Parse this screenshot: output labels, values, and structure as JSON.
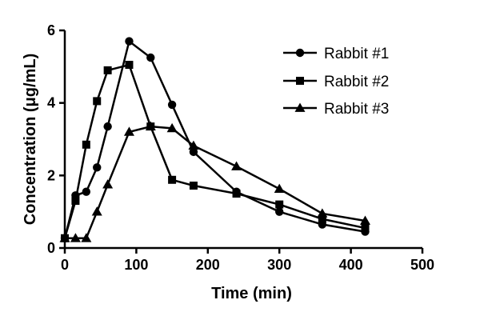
{
  "chart_data": {
    "type": "line",
    "title": "",
    "xlabel": "Time (min)",
    "ylabel": "Concentration (μg/mL)",
    "xlim": [
      0,
      500
    ],
    "ylim": [
      0,
      6
    ],
    "x_ticks": [
      0,
      100,
      200,
      300,
      400,
      500
    ],
    "y_ticks": [
      0,
      2,
      4,
      6
    ],
    "x_tick_labels": [
      "0",
      "100",
      "200",
      "300",
      "400",
      "500"
    ],
    "y_tick_labels": [
      "0",
      "2",
      "4",
      "6"
    ],
    "grid": false,
    "legend_position": "top-right",
    "series": [
      {
        "name": "Rabbit #1",
        "marker": "circle",
        "color": "#000000",
        "x": [
          0,
          15,
          30,
          45,
          60,
          90,
          120,
          150,
          180,
          240,
          300,
          360,
          420
        ],
        "y": [
          0.27,
          1.45,
          1.55,
          2.22,
          3.35,
          5.7,
          5.25,
          3.95,
          2.65,
          1.55,
          1.0,
          0.65,
          0.45
        ]
      },
      {
        "name": "Rabbit #2",
        "marker": "square",
        "color": "#000000",
        "x": [
          0,
          15,
          30,
          45,
          60,
          90,
          120,
          150,
          180,
          240,
          300,
          360,
          420
        ],
        "y": [
          0.27,
          1.3,
          2.85,
          4.05,
          4.9,
          5.05,
          3.35,
          1.88,
          1.72,
          1.5,
          1.2,
          0.8,
          0.55
        ]
      },
      {
        "name": "Rabbit #3",
        "marker": "triangle",
        "color": "#000000",
        "x": [
          0,
          15,
          30,
          45,
          60,
          90,
          120,
          150,
          180,
          240,
          300,
          360,
          420
        ],
        "y": [
          0.27,
          0.27,
          0.27,
          1.0,
          1.75,
          3.2,
          3.35,
          3.3,
          2.82,
          2.25,
          1.63,
          0.95,
          0.75
        ]
      }
    ]
  }
}
